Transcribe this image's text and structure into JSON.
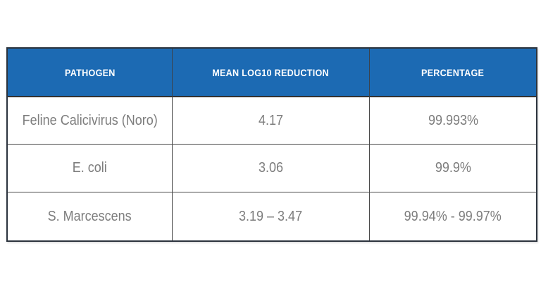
{
  "chart_data": {
    "type": "table",
    "columns": [
      "PATHOGEN",
      "MEAN LOG10 REDUCTION",
      "PERCENTAGE"
    ],
    "rows": [
      [
        "Feline Calicivirus (Noro)",
        "4.17",
        "99.993%"
      ],
      [
        "E. coli",
        "3.06",
        "99.9%"
      ],
      [
        "S. Marcescens",
        "3.19 – 3.47",
        "99.94% - 99.97%"
      ]
    ],
    "layout_hints": {
      "header_style": "solid blue band, white bold uppercase condensed text",
      "grid": "full inner grid lines, dark outer frame",
      "legend_position": "none",
      "title": ""
    }
  },
  "colors": {
    "header_bg": "#1c6ab3",
    "header_text": "#ffffff",
    "cell_text": "#7d7d7d",
    "outer_border": "#2b333d",
    "inner_border": "#4a4a4a",
    "background": "#ffffff"
  }
}
